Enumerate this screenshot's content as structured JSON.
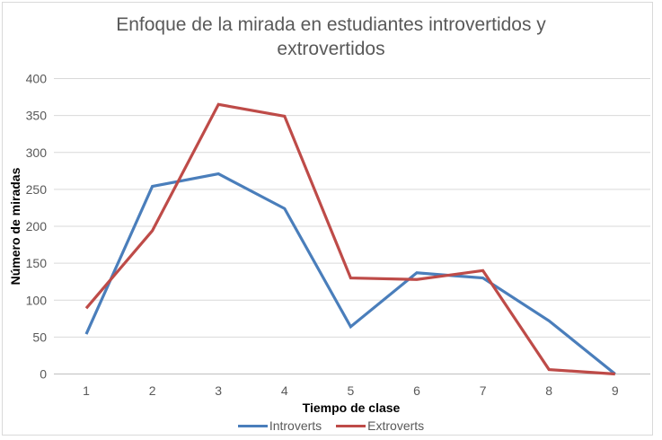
{
  "chart_data": {
    "type": "line",
    "title": "Enfoque de la mirada en estudiantes introvertidos y extrovertidos",
    "title_lines": [
      "Enfoque de la mirada en estudiantes introvertidos y",
      "extrovertidos"
    ],
    "xlabel": "Tiempo de clase",
    "ylabel": "Número de miradas",
    "x": [
      1,
      2,
      3,
      4,
      5,
      6,
      7,
      8,
      9
    ],
    "categories": [
      "1",
      "2",
      "3",
      "4",
      "5",
      "6",
      "7",
      "8",
      "9"
    ],
    "ylim": [
      0,
      400
    ],
    "yticks": [
      0,
      50,
      100,
      150,
      200,
      250,
      300,
      350,
      400
    ],
    "grid": true,
    "legend_position": "bottom",
    "series": [
      {
        "name": "Introverts",
        "color": "#4a7ebb",
        "values": [
          54,
          254,
          271,
          224,
          64,
          137,
          130,
          72,
          0
        ]
      },
      {
        "name": "Extroverts",
        "color": "#be4b48",
        "values": [
          89,
          194,
          365,
          349,
          130,
          128,
          140,
          6,
          0
        ]
      }
    ]
  }
}
